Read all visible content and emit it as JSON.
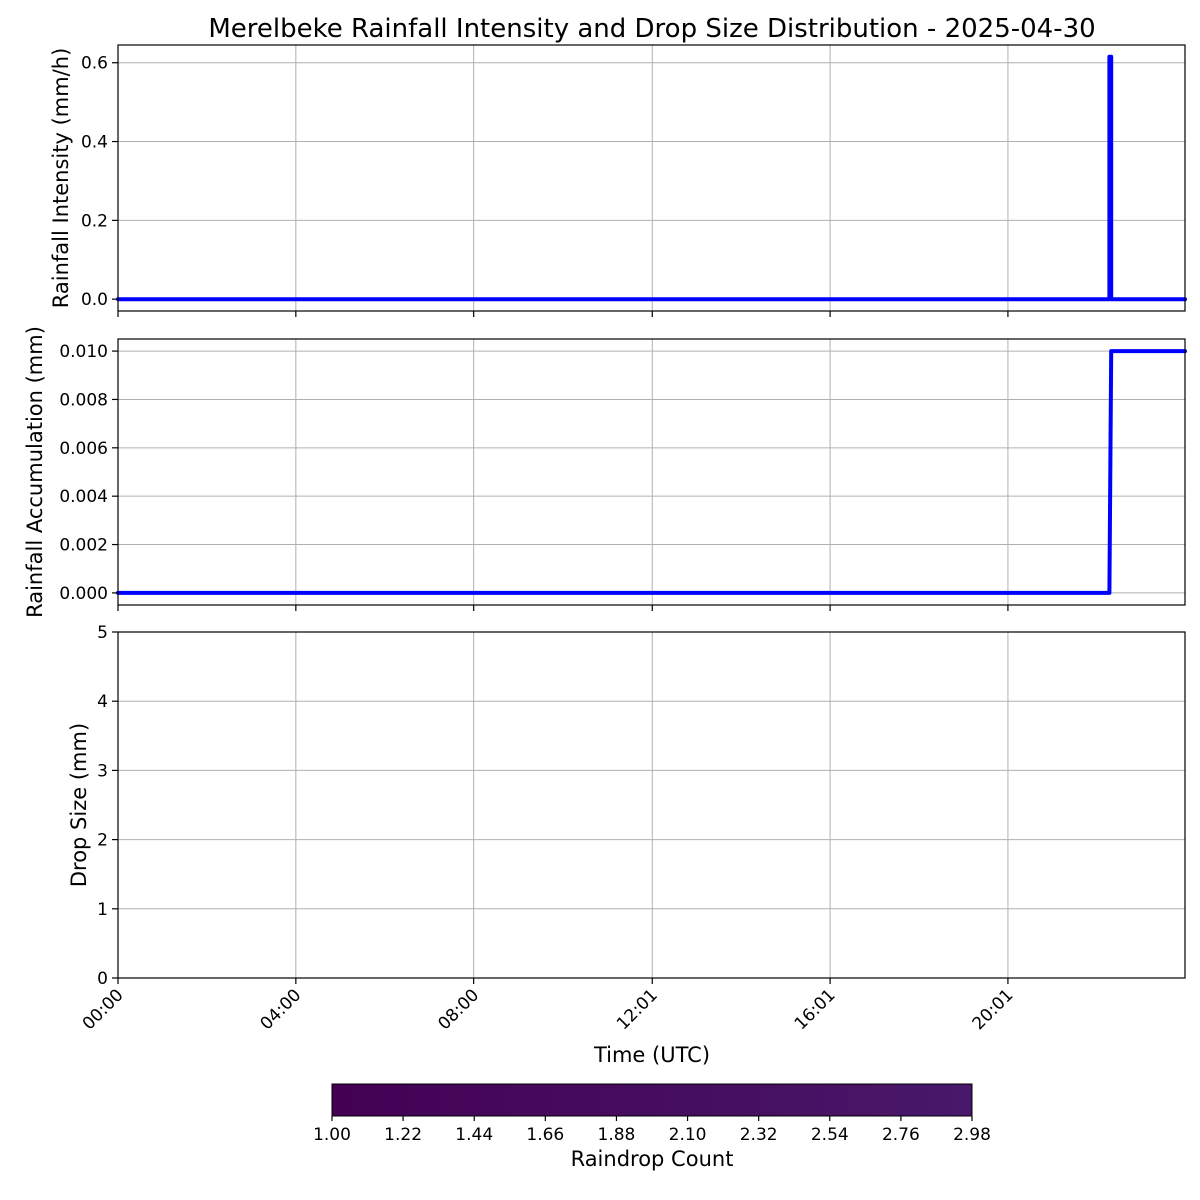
{
  "title": "Merelbeke Rainfall Intensity and Drop Size Distribution - 2025-04-30",
  "colors": {
    "line": "#0000ff",
    "grid": "#b0b0b0",
    "colormap_low": "#440154",
    "colormap_high": "#48186a"
  },
  "chart_data": [
    {
      "type": "line",
      "ylabel": "Rainfall Intensity (mm/h)",
      "xlim": [
        0,
        24
      ],
      "ylim": [
        -0.03,
        0.645
      ],
      "yticks": [
        0.0,
        0.2,
        0.4,
        0.6
      ],
      "ytick_labels": [
        "0.0",
        "0.2",
        "0.4",
        "0.6"
      ],
      "grid": true,
      "series": [
        {
          "x": [
            0,
            22.3,
            22.3,
            22.34,
            22.34,
            24
          ],
          "y": [
            0,
            0,
            0.615,
            0.615,
            0,
            0
          ]
        }
      ]
    },
    {
      "type": "line",
      "ylabel": "Rainfall Accumulation (mm)",
      "xlim": [
        0,
        24
      ],
      "ylim": [
        -0.0005,
        0.0105
      ],
      "yticks": [
        0.0,
        0.002,
        0.004,
        0.006,
        0.008,
        0.01
      ],
      "ytick_labels": [
        "0.000",
        "0.002",
        "0.004",
        "0.006",
        "0.008",
        "0.010"
      ],
      "grid": true,
      "series": [
        {
          "x": [
            0,
            22.3,
            22.34,
            24
          ],
          "y": [
            0,
            0,
            0.01,
            0.01
          ]
        }
      ]
    },
    {
      "type": "heatmap",
      "ylabel": "Drop Size (mm)",
      "xlabel": "Time (UTC)",
      "xlim": [
        0,
        24
      ],
      "ylim": [
        0,
        5
      ],
      "yticks": [
        0,
        1,
        2,
        3,
        4,
        5
      ],
      "ytick_labels": [
        "0",
        "1",
        "2",
        "3",
        "4",
        "5"
      ],
      "xticks": [
        0,
        4,
        8,
        12.017,
        16.017,
        20.017
      ],
      "xtick_labels": [
        "00:00",
        "04:00",
        "08:00",
        "12:01",
        "16:01",
        "20:01"
      ],
      "grid": true,
      "colorbar": {
        "label": "Raindrop Count",
        "range": [
          1.0,
          2.98
        ],
        "ticks": [
          1.0,
          1.22,
          1.44,
          1.66,
          1.88,
          2.1,
          2.32,
          2.54,
          2.76,
          2.98
        ],
        "tick_labels": [
          "1.00",
          "1.22",
          "1.44",
          "1.66",
          "1.88",
          "2.10",
          "2.32",
          "2.54",
          "2.76",
          "2.98"
        ]
      }
    }
  ]
}
